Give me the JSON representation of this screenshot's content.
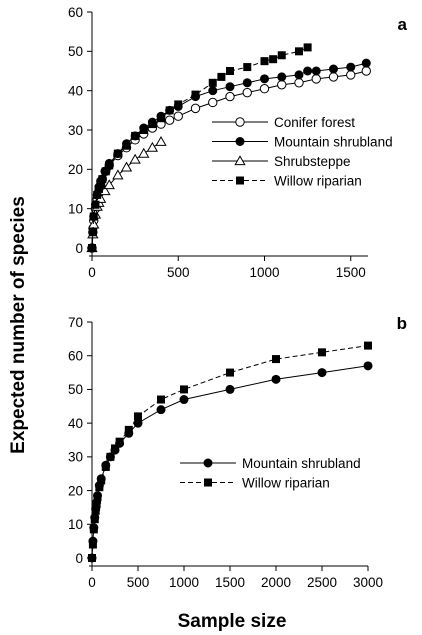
{
  "figure": {
    "ylabel": "Expected number of species",
    "xlabel": "Sample size"
  },
  "chart_data": [
    {
      "type": "line",
      "panel_label": "a",
      "xlim": [
        0,
        1600
      ],
      "ylim": [
        0,
        60
      ],
      "xticks": [
        "0",
        "500",
        "1000",
        "1500"
      ],
      "yticks": [
        "0",
        "10",
        "20",
        "30",
        "40",
        "50",
        "60"
      ],
      "legend_position": "center-right",
      "series": [
        {
          "name": "Conifer forest",
          "marker": "open-circle",
          "line_style": "solid",
          "x": [
            0,
            5,
            10,
            20,
            30,
            40,
            50,
            60,
            80,
            100,
            150,
            200,
            250,
            300,
            350,
            400,
            450,
            500,
            600,
            700,
            800,
            900,
            1000,
            1100,
            1200,
            1300,
            1400,
            1500,
            1590
          ],
          "y": [
            0,
            4,
            7,
            10,
            12.5,
            14.5,
            16,
            17.5,
            19.5,
            21,
            23.5,
            25.5,
            27.5,
            29,
            30.5,
            31.5,
            32.5,
            33.5,
            35.5,
            37,
            38.5,
            39.5,
            40.5,
            41.5,
            42,
            43,
            43.5,
            44,
            45
          ]
        },
        {
          "name": "Mountain shrubland",
          "marker": "filled-circle",
          "line_style": "solid",
          "x": [
            0,
            5,
            10,
            20,
            30,
            40,
            50,
            75,
            100,
            150,
            200,
            250,
            300,
            350,
            400,
            450,
            500,
            600,
            700,
            800,
            900,
            1000,
            1100,
            1200,
            1250,
            1300,
            1400,
            1500,
            1590
          ],
          "y": [
            0,
            5,
            8,
            11,
            13.5,
            15.5,
            17,
            19.5,
            21.5,
            24,
            26.5,
            28.5,
            30.5,
            32,
            33.5,
            35,
            36,
            38.5,
            40,
            41,
            42,
            43,
            43.5,
            44,
            45,
            45,
            45.5,
            46,
            47
          ]
        },
        {
          "name": "Shrubsteppe",
          "marker": "open-triangle",
          "line_style": "solid",
          "x": [
            0,
            5,
            10,
            20,
            30,
            40,
            50,
            75,
            100,
            150,
            200,
            250,
            300,
            350,
            400
          ],
          "y": [
            0,
            3.5,
            6,
            8.5,
            10.5,
            11.5,
            12.5,
            14.5,
            16,
            18.5,
            20.5,
            22.5,
            24,
            25.5,
            27
          ]
        },
        {
          "name": "Willow riparian",
          "marker": "filled-square",
          "line_style": "dashed",
          "x": [
            0,
            5,
            10,
            20,
            30,
            40,
            50,
            60,
            80,
            100,
            150,
            200,
            250,
            300,
            350,
            400,
            450,
            500,
            600,
            700,
            750,
            800,
            900,
            1000,
            1050,
            1100,
            1200,
            1250
          ],
          "y": [
            0,
            4,
            8,
            11,
            13.5,
            15,
            16.5,
            17.5,
            19.5,
            21,
            24,
            26,
            28.5,
            30,
            31.5,
            33,
            35,
            36.5,
            39,
            42,
            43.5,
            45,
            46,
            47.5,
            48,
            49,
            50,
            51
          ]
        }
      ]
    },
    {
      "type": "line",
      "panel_label": "b",
      "xlim": [
        0,
        3000
      ],
      "ylim": [
        0,
        70
      ],
      "xticks": [
        "0",
        "500",
        "1000",
        "1500",
        "2000",
        "2500",
        "3000"
      ],
      "yticks": [
        "0",
        "10",
        "20",
        "30",
        "40",
        "50",
        "60",
        "70"
      ],
      "legend_position": "lower-right",
      "series": [
        {
          "name": "Mountain shrubland",
          "marker": "filled-circle",
          "line_style": "solid",
          "x": [
            0,
            10,
            20,
            30,
            40,
            50,
            60,
            80,
            100,
            150,
            200,
            250,
            300,
            400,
            500,
            750,
            1000,
            1500,
            2000,
            2500,
            3000
          ],
          "y": [
            0,
            5,
            9,
            12,
            14.5,
            16.5,
            18.5,
            21.5,
            23.5,
            27.5,
            30,
            32,
            34,
            37,
            40,
            44,
            47,
            50,
            53,
            55,
            57
          ]
        },
        {
          "name": "Willow riparian",
          "marker": "filled-square",
          "line_style": "dashed",
          "x": [
            0,
            10,
            20,
            30,
            40,
            50,
            60,
            80,
            100,
            150,
            200,
            250,
            300,
            400,
            500,
            750,
            1000,
            1500,
            2000,
            2500,
            3000
          ],
          "y": [
            0,
            4,
            8.5,
            11.5,
            14,
            16,
            18,
            21,
            23,
            27,
            30,
            32.5,
            34.5,
            38,
            42,
            47,
            50,
            55,
            59,
            61,
            63
          ]
        }
      ]
    }
  ]
}
